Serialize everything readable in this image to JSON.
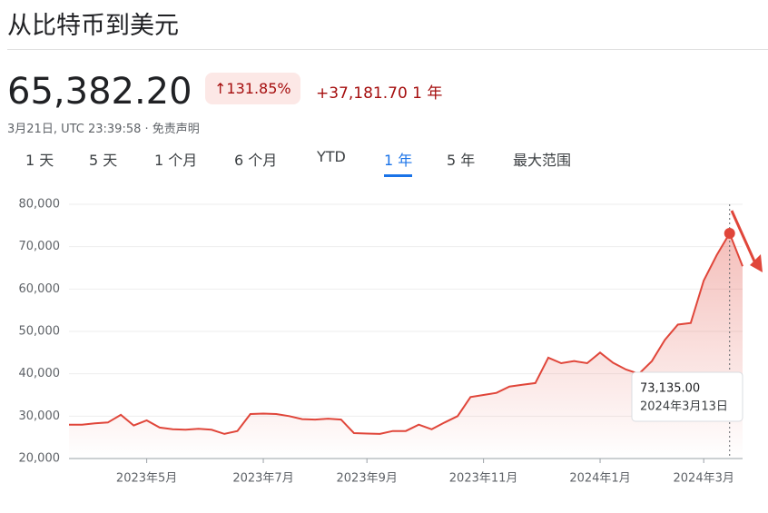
{
  "header": {
    "title": "从比特币到美元",
    "price": "65,382.20",
    "change_pct": "↑131.85%",
    "change_abs": "+37,181.70",
    "period": "1 年",
    "timestamp": "3月21日, UTC 23:39:58 · 免责声明"
  },
  "tabs": [
    "1 天",
    "5 天",
    "1 个月",
    "6 个月",
    "YTD",
    "1 年",
    "5 年",
    "最大范围"
  ],
  "active_tab": 5,
  "chart_data": {
    "type": "line",
    "categories": [
      null,
      null,
      null,
      null,
      null,
      null,
      "2023年5月",
      null,
      null,
      null,
      null,
      null,
      null,
      null,
      null,
      "2023年7月",
      null,
      null,
      null,
      null,
      null,
      null,
      null,
      "2023年9月",
      null,
      null,
      null,
      null,
      null,
      null,
      null,
      null,
      "2023年11月",
      null,
      null,
      null,
      null,
      null,
      null,
      null,
      null,
      "2024年1月",
      null,
      null,
      null,
      null,
      null,
      null,
      null,
      "2024年3月",
      null,
      null,
      null
    ],
    "series": [
      {
        "color": "#e0463a",
        "values": [
          28000,
          28000,
          28300,
          28500,
          30300,
          27800,
          29000,
          27300,
          26900,
          26800,
          27000,
          26800,
          25800,
          26500,
          30500,
          30600,
          30500,
          30000,
          29300,
          29200,
          29400,
          29200,
          26000,
          25900,
          25800,
          26500,
          26500,
          28000,
          26900,
          28500,
          30000,
          34500,
          35000,
          35500,
          37000,
          37400,
          37800,
          43800,
          42500,
          43000,
          42500,
          45000,
          42600,
          41000,
          40000,
          43000,
          48000,
          51600,
          52000,
          62000,
          68000,
          73135,
          65382
        ]
      }
    ],
    "ylim": [
      20000,
      80000
    ],
    "yticks": [
      {
        "value": 20000,
        "label": "20,000"
      },
      {
        "value": 30000,
        "label": "30,000"
      },
      {
        "value": 40000,
        "label": "40,000"
      },
      {
        "value": 50000,
        "label": "50,000"
      },
      {
        "value": 60000,
        "label": "60,000"
      },
      {
        "value": 70000,
        "label": "70,000"
      },
      {
        "value": 80000,
        "label": "80,000"
      }
    ],
    "grid": true,
    "tooltip": {
      "index": 51,
      "value": "73,135.00",
      "date": "2024年3月13日"
    }
  }
}
